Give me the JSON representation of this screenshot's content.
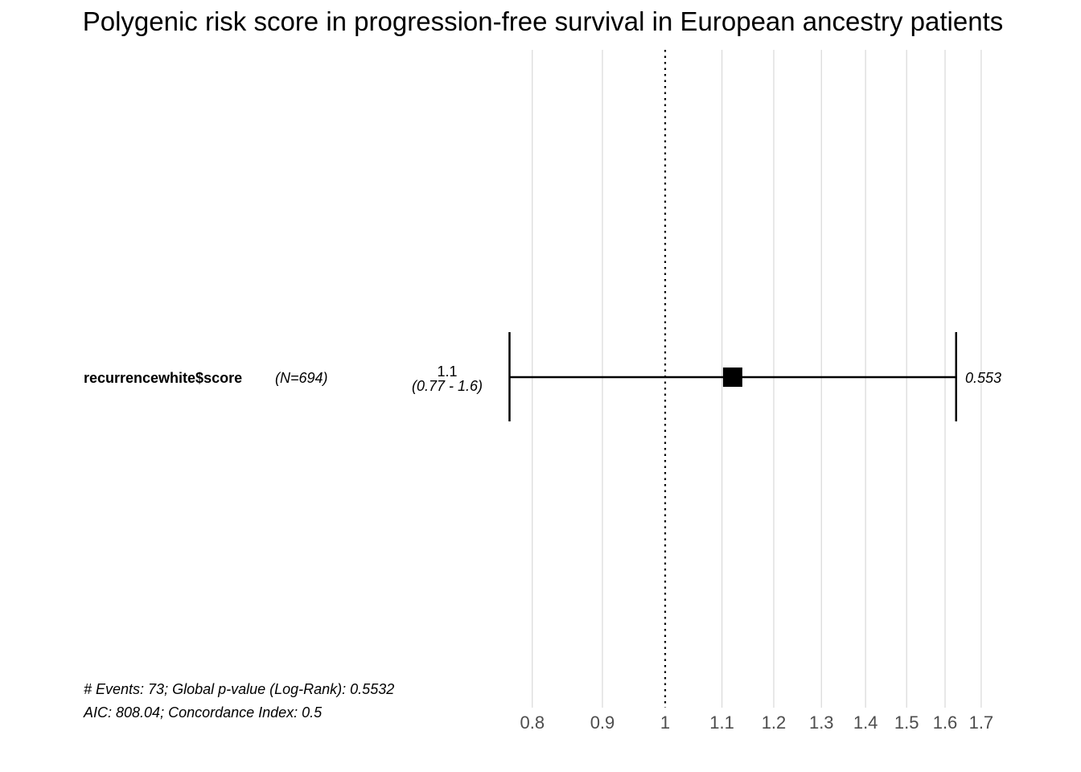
{
  "chart_data": {
    "type": "forest",
    "title": "Polygenic risk score in progression-free survival in European ancestry patients",
    "x_scale": "log",
    "xlim": [
      0.77,
      1.7
    ],
    "x_ticks": [
      0.8,
      0.9,
      1,
      1.1,
      1.2,
      1.3,
      1.4,
      1.5,
      1.6,
      1.7
    ],
    "x_tick_labels": [
      "0.8",
      "0.9",
      "1",
      "1.1",
      "1.2",
      "1.3",
      "1.4",
      "1.5",
      "1.6",
      "1.7"
    ],
    "reference_line": 1,
    "grid": true,
    "rows": [
      {
        "variable": "recurrencewhite$score",
        "n_label": "(N=694)",
        "hr": 1.12,
        "ci_lower": 0.77,
        "ci_upper": 1.63,
        "hr_label": "1.1",
        "ci_label": "(0.77 - 1.6)",
        "p_label": "0.553"
      }
    ],
    "footer": [
      "# Events: 73; Global p-value (Log-Rank): 0.5532",
      "AIC: 808.04; Concordance Index: 0.5"
    ],
    "colors": {
      "grid": "#d9d9d9",
      "ink": "#000000",
      "tick_text": "#4d4d4d"
    }
  }
}
